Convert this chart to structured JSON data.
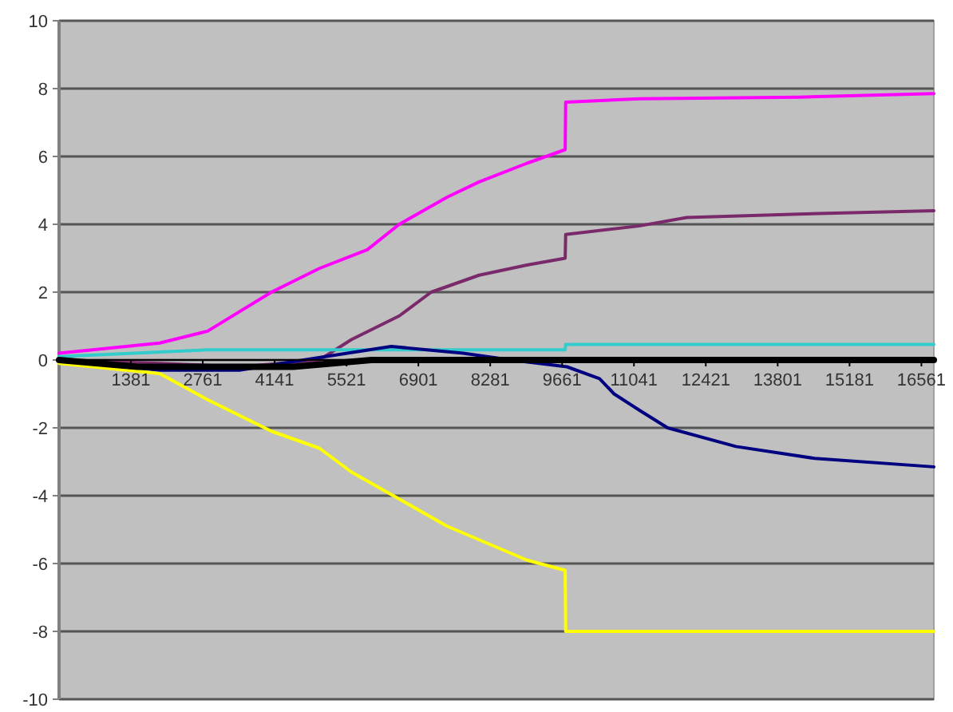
{
  "chart_data": {
    "type": "line",
    "xlim": [
      1,
      16800
    ],
    "xticks": [
      1381,
      2761,
      4141,
      5521,
      6901,
      8281,
      9661,
      11041,
      12421,
      13801,
      15181,
      16561
    ],
    "ylim": [
      -10,
      10
    ],
    "yticks": [
      -10,
      -8,
      -6,
      -4,
      -2,
      0,
      2,
      4,
      6,
      8,
      10
    ],
    "grid": "y",
    "series": [
      {
        "color": "#ff00ff",
        "x": [
          1,
          1934,
          2853,
          4080,
          5000,
          5920,
          6534,
          7454,
          8068,
          8988,
          9720,
          9730,
          11135,
          14203,
          16800
        ],
        "values": [
          0.2,
          0.5,
          0.85,
          2.0,
          2.7,
          3.25,
          4.0,
          4.8,
          5.25,
          5.8,
          6.2,
          7.6,
          7.7,
          7.75,
          7.85
        ]
      },
      {
        "color": "#7a2a6a",
        "x": [
          1,
          1934,
          3500,
          5000,
          5613,
          6534,
          7147,
          8068,
          8988,
          9720,
          9730,
          11135,
          12055,
          14203,
          16800
        ],
        "values": [
          0,
          -0.1,
          -0.2,
          0,
          0.6,
          1.3,
          2.0,
          2.5,
          2.8,
          3.0,
          3.7,
          3.95,
          4.2,
          4.3,
          4.4
        ]
      },
      {
        "color": "#33cccc",
        "x": [
          1,
          2853,
          9720,
          9730,
          16800
        ],
        "values": [
          0.1,
          0.3,
          0.3,
          0.46,
          0.46
        ]
      },
      {
        "color": "#000080",
        "x": [
          1,
          1934,
          3466,
          4693,
          6380,
          7760,
          8681,
          9755,
          10380,
          10660,
          11165,
          11687,
          13000,
          14510,
          16800
        ],
        "values": [
          0,
          -0.3,
          -0.3,
          0,
          0.4,
          0.2,
          0,
          -0.2,
          -0.55,
          -1.0,
          -1.5,
          -2.0,
          -2.55,
          -2.9,
          -3.15
        ]
      },
      {
        "color": "#ffff00",
        "x": [
          1,
          1934,
          2853,
          4080,
          5000,
          5613,
          6534,
          7454,
          8068,
          8988,
          9720,
          9730,
          16800
        ],
        "values": [
          -0.1,
          -0.4,
          -1.17,
          -2.1,
          -2.6,
          -3.3,
          -4.1,
          -4.9,
          -5.3,
          -5.9,
          -6.2,
          -8.0,
          -8.0
        ]
      },
      {
        "color": "#000000",
        "x": [
          1,
          1500,
          4500,
          6000,
          16800
        ],
        "values": [
          0,
          -0.2,
          -0.2,
          0,
          0
        ]
      }
    ]
  }
}
